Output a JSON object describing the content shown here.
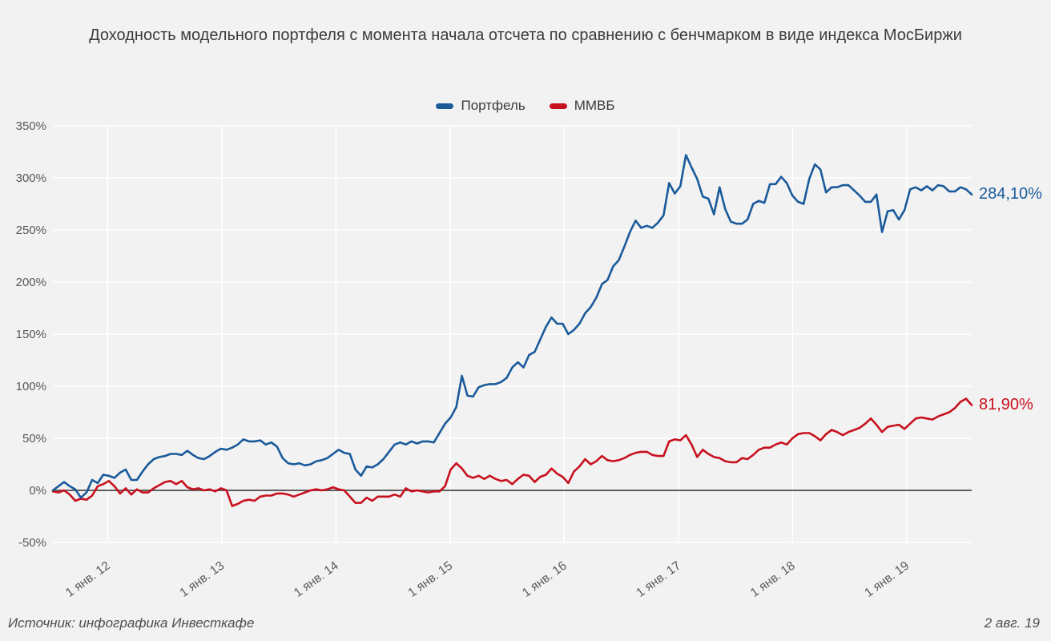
{
  "title": "Доходность модельного портфеля с момента начала отсчета по сравнению с бенчмарком в виде индекса МосБиржи",
  "legend": {
    "items": [
      {
        "label": "Портфель",
        "color": "#1a5a9b"
      },
      {
        "label": "ММВБ",
        "color": "#c8101e"
      }
    ]
  },
  "footer": {
    "source": "Источник: инфографика Инвесткафе",
    "date": "2 авг. 19"
  },
  "colors": {
    "background": "#f2f2f2",
    "gridline": "#ffffff",
    "zero_line": "#5e5e5e",
    "tick_label": "#595959",
    "portfolio": "#1a5a9b",
    "benchmark": "#c8101e"
  },
  "chart_data": {
    "type": "line",
    "title": "Доходность модельного портфеля с момента начала отсчета по сравнению с бенчмарком в виде индекса МосБиржи",
    "xlabel": "",
    "ylabel": "",
    "ylim": [
      -50,
      350
    ],
    "y_ticks": [
      -50,
      0,
      50,
      100,
      150,
      200,
      250,
      300,
      350
    ],
    "y_tick_suffix": "%",
    "x_domain": [
      2011.52,
      2019.57
    ],
    "x_ticks": [
      {
        "year": 2012,
        "label": "1 янв. 12"
      },
      {
        "year": 2013,
        "label": "1 янв. 13"
      },
      {
        "year": 2014,
        "label": "1 янв. 14"
      },
      {
        "year": 2015,
        "label": "1 янв. 15"
      },
      {
        "year": 2016,
        "label": "1 янв. 16"
      },
      {
        "year": 2017,
        "label": "1 янв. 17"
      },
      {
        "year": 2018,
        "label": "1 янв. 18"
      },
      {
        "year": 2019,
        "label": "1 янв. 19"
      }
    ],
    "grid": true,
    "legend_position": "top",
    "sampling_note": "values are percent returns, evenly spaced in time from x_domain[0] to x_domain[1]",
    "series": [
      {
        "name": "Портфель",
        "color": "#1a5a9b",
        "final_value": 284.1,
        "end_label": "284,10%",
        "values": [
          0,
          4,
          8,
          4,
          1,
          -7,
          -2,
          10,
          7,
          15,
          14,
          12,
          17,
          20,
          10,
          10,
          18,
          25,
          30,
          32,
          33,
          35,
          35,
          34,
          38,
          34,
          31,
          30,
          33,
          37,
          40,
          39,
          41,
          44,
          49,
          47,
          47,
          48,
          44,
          46,
          42,
          31,
          26,
          25,
          26,
          24,
          25,
          28,
          29,
          31,
          35,
          39,
          36,
          35,
          20,
          14,
          23,
          22,
          25,
          30,
          37,
          44,
          46,
          44,
          47,
          45,
          47,
          47,
          46,
          55,
          64,
          70,
          80,
          110,
          91,
          90,
          99,
          101,
          102,
          102,
          104,
          108,
          118,
          123,
          118,
          130,
          133,
          145,
          157,
          166,
          160,
          160,
          150,
          154,
          160,
          170,
          176,
          185,
          198,
          202,
          215,
          221,
          234,
          248,
          259,
          252,
          254,
          252,
          257,
          264,
          295,
          285,
          292,
          322,
          310,
          299,
          282,
          280,
          265,
          291,
          270,
          258,
          256,
          256,
          260,
          275,
          278,
          276,
          294,
          294,
          301,
          295,
          283,
          277,
          275,
          299,
          313,
          308,
          286,
          291,
          291,
          293,
          293,
          288,
          283,
          277,
          277,
          284,
          248,
          268,
          269,
          260,
          269,
          289,
          291,
          288,
          292,
          288,
          293,
          292,
          287,
          287,
          291,
          289,
          284.1
        ]
      },
      {
        "name": "ММВБ",
        "color": "#c8101e",
        "final_value": 81.9,
        "end_label": "81,90%",
        "values": [
          -1,
          -2,
          0,
          -4,
          -10,
          -8,
          -9,
          -5,
          4,
          6,
          9,
          4,
          -3,
          2,
          -4,
          1,
          -2,
          -2,
          2,
          5,
          8,
          9,
          6,
          9,
          3,
          1,
          2,
          0,
          1,
          -1,
          2,
          0,
          -15,
          -13,
          -10,
          -9,
          -10,
          -6,
          -5,
          -5,
          -3,
          -3,
          -4,
          -6,
          -4,
          -2,
          0,
          1,
          0,
          1,
          3,
          1,
          0,
          -6,
          -12,
          -12,
          -7,
          -10,
          -6,
          -6,
          -6,
          -4,
          -6,
          2,
          -1,
          0,
          -1,
          -2,
          -1,
          -1,
          4,
          20,
          26,
          21,
          14,
          12,
          14,
          11,
          14,
          11,
          9,
          10,
          6,
          11,
          15,
          14,
          8,
          13,
          15,
          21,
          16,
          13,
          7,
          18,
          23,
          30,
          25,
          28,
          33,
          29,
          28,
          29,
          31,
          34,
          36,
          37,
          37,
          34,
          33,
          33,
          47,
          49,
          48,
          53,
          44,
          32,
          39,
          35,
          32,
          31,
          28,
          27,
          27,
          31,
          30,
          34,
          39,
          41,
          41,
          44,
          46,
          44,
          50,
          54,
          55,
          55,
          52,
          48,
          54,
          58,
          56,
          53,
          56,
          58,
          60,
          64,
          69,
          63,
          56,
          61,
          62,
          63,
          59,
          64,
          69,
          70,
          69,
          68,
          71,
          73,
          75,
          79,
          85,
          88,
          81.9
        ]
      }
    ]
  }
}
